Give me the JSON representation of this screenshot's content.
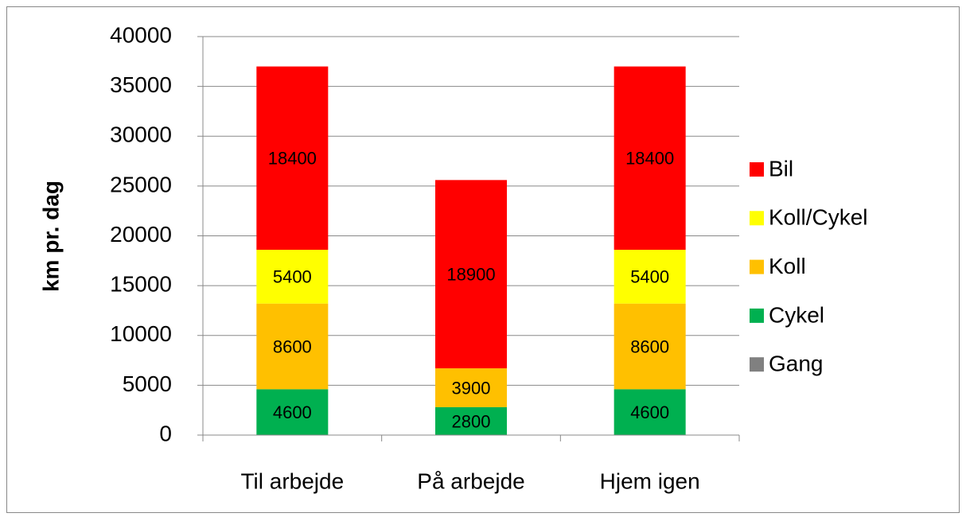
{
  "chart_data": {
    "type": "stacked_bar",
    "y_label": "km pr. dag",
    "categories": [
      "Til arbejde",
      "På arbejde",
      "Hjem igen"
    ],
    "series": [
      {
        "name": "Gang",
        "color": "#808080",
        "values": [
          0,
          0,
          0
        ]
      },
      {
        "name": "Cykel",
        "color": "#00b050",
        "values": [
          4600,
          2800,
          4600
        ]
      },
      {
        "name": "Koll",
        "color": "#ffc000",
        "values": [
          8600,
          3900,
          8600
        ]
      },
      {
        "name": "Koll/Cykel",
        "color": "#ffff00",
        "values": [
          5400,
          0,
          5400
        ]
      },
      {
        "name": "Bil",
        "color": "#ff0000",
        "values": [
          18400,
          18900,
          18400
        ]
      }
    ],
    "ylim": [
      0,
      40000
    ],
    "yticks": [
      0,
      5000,
      10000,
      15000,
      20000,
      25000,
      30000,
      35000,
      40000
    ],
    "grid": true,
    "legend": "right"
  }
}
